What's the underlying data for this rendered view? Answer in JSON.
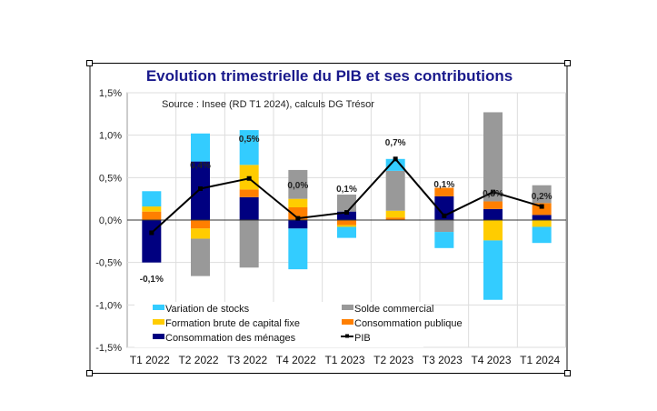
{
  "chart_data": {
    "type": "bar",
    "stacked": true,
    "title": "Evolution trimestrielle du PIB et ses contributions",
    "source": "Source : Insee (RD T1 2024), calculs DG Trésor",
    "xlabel": "",
    "ylabel": "",
    "ylim": [
      -1.5,
      1.5
    ],
    "yticks": [
      1.5,
      1.0,
      0.5,
      0.0,
      -0.5,
      -1.0,
      -1.5
    ],
    "ytick_labels": [
      "1,5%",
      "1,0%",
      "0,5%",
      "0,0%",
      "-0,5%",
      "-1,0%",
      "-1,5%"
    ],
    "grid": true,
    "legend_position": "bottom-inside",
    "categories": [
      "T1 2022",
      "T2 2022",
      "T3 2022",
      "T4 2022",
      "T1 2023",
      "T2 2023",
      "T3 2023",
      "T4 2023",
      "T1 2024"
    ],
    "series": [
      {
        "name": "Consommation des ménages",
        "color": "#000080",
        "values": [
          -0.5,
          0.69,
          0.27,
          -0.1,
          0.1,
          0.0,
          0.28,
          0.13,
          0.06
        ]
      },
      {
        "name": "Consommation publique",
        "color": "#ff7f00",
        "values": [
          0.1,
          -0.1,
          0.09,
          0.15,
          -0.06,
          0.03,
          0.1,
          0.09,
          0.14
        ]
      },
      {
        "name": "Formation brute de capital fixe",
        "color": "#ffcc00",
        "values": [
          0.06,
          -0.12,
          0.29,
          0.1,
          -0.02,
          0.08,
          0.0,
          -0.24,
          -0.08
        ]
      },
      {
        "name": "Solde commercial",
        "color": "#999999",
        "values": [
          0.0,
          -0.44,
          -0.56,
          0.34,
          0.2,
          0.47,
          -0.14,
          1.05,
          0.21
        ]
      },
      {
        "name": "Variation de stocks",
        "color": "#33ccff",
        "values": [
          0.18,
          0.33,
          0.41,
          -0.48,
          -0.13,
          0.14,
          -0.19,
          -0.7,
          -0.19
        ]
      }
    ],
    "line": {
      "name": "PIB",
      "color": "#000000",
      "values": [
        -0.15,
        0.37,
        0.49,
        0.02,
        0.09,
        0.72,
        0.05,
        0.33,
        0.16
      ]
    },
    "data_labels": [
      "-0,1%",
      "0,4%",
      "0,5%",
      "0,0%",
      "0,1%",
      "0,7%",
      "0,1%",
      "0,3%",
      "0,2%"
    ],
    "legend": [
      {
        "label": "Variation de stocks",
        "color": "#33ccff",
        "kind": "box"
      },
      {
        "label": "Solde commercial",
        "color": "#999999",
        "kind": "box"
      },
      {
        "label": "Formation brute de capital fixe",
        "color": "#ffcc00",
        "kind": "box"
      },
      {
        "label": "Consommation publique",
        "color": "#ff7f00",
        "kind": "box"
      },
      {
        "label": "Consommation des ménages",
        "color": "#000080",
        "kind": "box"
      },
      {
        "label": "PIB",
        "color": "#000000",
        "kind": "line"
      }
    ]
  }
}
